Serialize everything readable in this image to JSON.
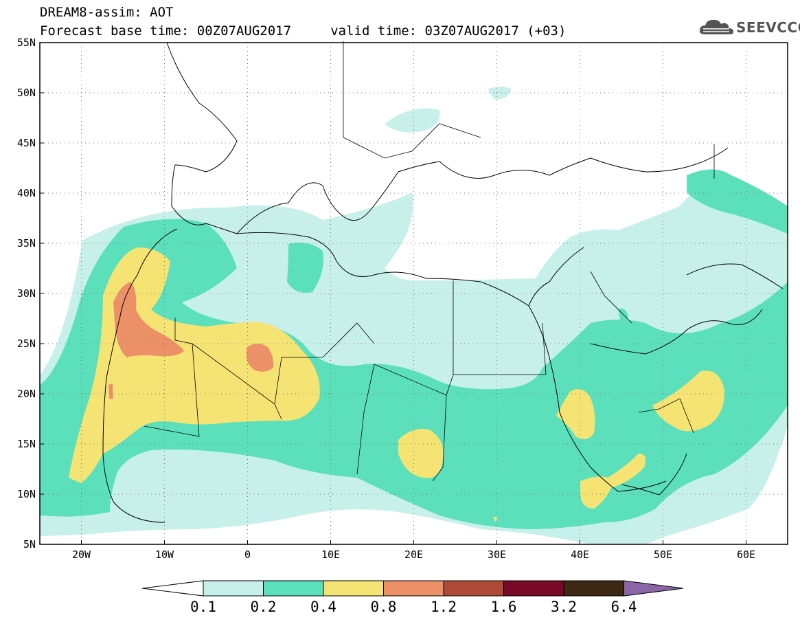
{
  "header": {
    "title_line1": "DREAM8-assim: AOT",
    "title_line2": "Forecast base time: 00Z07AUG2017     valid time: 03Z07AUG2017 (+03)"
  },
  "logo": {
    "text": "SEEVCCC",
    "icon": "cloud-icon"
  },
  "map": {
    "region": "North Africa / Mediterranean / Middle East",
    "lon_range": [
      -25,
      65
    ],
    "lat_range": [
      5,
      55
    ],
    "lon_ticks": [
      {
        "value": -20,
        "label": "20W"
      },
      {
        "value": -10,
        "label": "10W"
      },
      {
        "value": 0,
        "label": "0"
      },
      {
        "value": 10,
        "label": "10E"
      },
      {
        "value": 20,
        "label": "20E"
      },
      {
        "value": 30,
        "label": "30E"
      },
      {
        "value": 40,
        "label": "40E"
      },
      {
        "value": 50,
        "label": "50E"
      },
      {
        "value": 60,
        "label": "60E"
      }
    ],
    "lat_ticks": [
      {
        "value": 55,
        "label": "55N"
      },
      {
        "value": 50,
        "label": "50N"
      },
      {
        "value": 45,
        "label": "45N"
      },
      {
        "value": 40,
        "label": "40N"
      },
      {
        "value": 35,
        "label": "35N"
      },
      {
        "value": 30,
        "label": "30N"
      },
      {
        "value": 25,
        "label": "25N"
      },
      {
        "value": 20,
        "label": "20N"
      },
      {
        "value": 15,
        "label": "15N"
      },
      {
        "value": 10,
        "label": "10N"
      },
      {
        "value": 5,
        "label": "5N"
      }
    ],
    "grid": "dotted",
    "variable": "AOT"
  },
  "colorbar": {
    "bins": [
      {
        "color": "#c8f0ea"
      },
      {
        "color": "#5ce0bc"
      },
      {
        "color": "#f5e474"
      },
      {
        "color": "#ec9068"
      },
      {
        "color": "#ad4a38"
      },
      {
        "color": "#780a28"
      },
      {
        "color": "#3c2814"
      }
    ],
    "under_color": "#ffffff",
    "over_color": "#8c64a8",
    "labels": [
      "0.1",
      "0.2",
      "0.4",
      "0.8",
      "1.2",
      "1.6",
      "3.2",
      "6.4"
    ]
  }
}
